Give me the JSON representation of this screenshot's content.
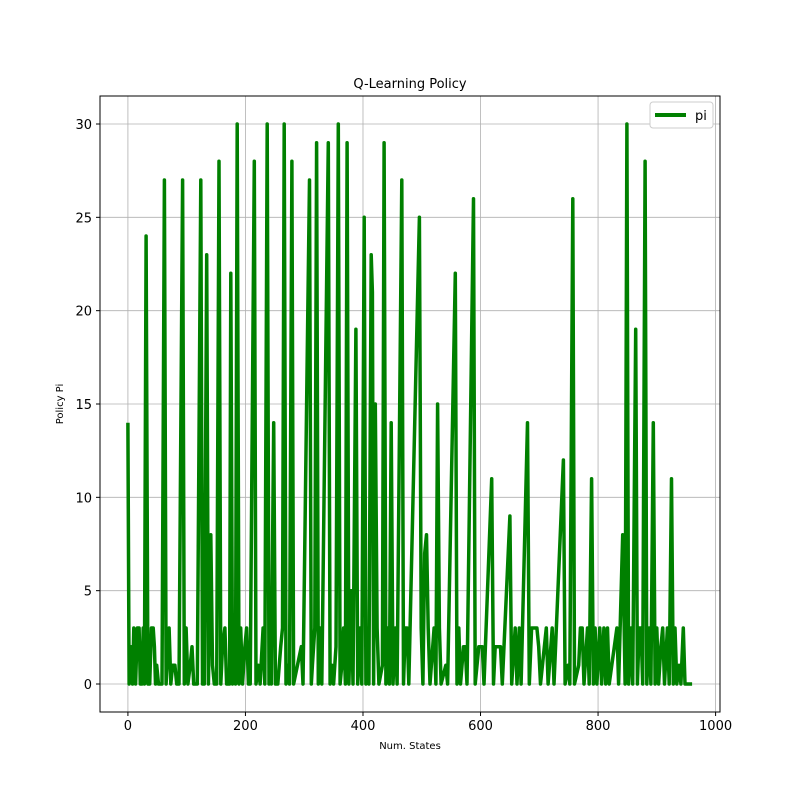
{
  "chart_data": {
    "type": "line",
    "title": "Q-Learning Policy",
    "xlabel": "Num. States",
    "ylabel": "Policy Pi",
    "xlim": [
      -47.5,
      1007.5
    ],
    "ylim": [
      -1.5,
      31.5
    ],
    "xticks": [
      0,
      200,
      400,
      600,
      800,
      1000
    ],
    "yticks": [
      0,
      5,
      10,
      15,
      20,
      25,
      30
    ],
    "xtick_labels": [
      "0",
      "200",
      "400",
      "600",
      "800",
      "1000"
    ],
    "ytick_labels": [
      "0",
      "5",
      "10",
      "15",
      "20",
      "25",
      "30"
    ],
    "grid": true,
    "legend": {
      "entries": [
        "pi"
      ],
      "position": "top-right"
    },
    "series": [
      {
        "name": "pi",
        "color": "#008000",
        "points": [
          [
            0,
            14
          ],
          [
            2,
            0
          ],
          [
            5,
            2
          ],
          [
            8,
            0
          ],
          [
            10,
            3
          ],
          [
            13,
            0
          ],
          [
            16,
            3
          ],
          [
            19,
            3
          ],
          [
            21,
            0
          ],
          [
            24,
            0
          ],
          [
            26,
            3
          ],
          [
            28,
            0
          ],
          [
            31,
            24
          ],
          [
            34,
            0
          ],
          [
            37,
            0
          ],
          [
            40,
            3
          ],
          [
            43,
            3
          ],
          [
            45,
            2
          ],
          [
            47,
            0
          ],
          [
            49,
            1
          ],
          [
            52,
            0
          ],
          [
            58,
            0
          ],
          [
            62,
            27
          ],
          [
            65,
            0
          ],
          [
            68,
            2
          ],
          [
            70,
            3
          ],
          [
            73,
            0
          ],
          [
            76,
            1
          ],
          [
            80,
            1
          ],
          [
            83,
            0
          ],
          [
            87,
            0
          ],
          [
            93,
            27
          ],
          [
            96,
            0
          ],
          [
            99,
            3
          ],
          [
            102,
            0
          ],
          [
            106,
            1
          ],
          [
            109,
            2
          ],
          [
            112,
            0
          ],
          [
            118,
            0
          ],
          [
            124,
            27
          ],
          [
            127,
            0
          ],
          [
            130,
            0
          ],
          [
            134,
            23
          ],
          [
            137,
            0
          ],
          [
            141,
            8
          ],
          [
            144,
            1
          ],
          [
            147,
            0
          ],
          [
            151,
            0
          ],
          [
            155,
            28
          ],
          [
            158,
            0
          ],
          [
            161,
            2
          ],
          [
            165,
            3
          ],
          [
            168,
            0
          ],
          [
            173,
            0
          ],
          [
            175,
            22
          ],
          [
            178,
            0
          ],
          [
            181,
            3
          ],
          [
            183,
            0
          ],
          [
            186,
            30
          ],
          [
            189,
            0
          ],
          [
            192,
            3
          ],
          [
            195,
            0
          ],
          [
            199,
            2
          ],
          [
            202,
            3
          ],
          [
            205,
            0
          ],
          [
            208,
            0
          ],
          [
            215,
            28
          ],
          [
            218,
            0
          ],
          [
            222,
            1
          ],
          [
            225,
            0
          ],
          [
            230,
            3
          ],
          [
            233,
            0
          ],
          [
            237,
            30
          ],
          [
            240,
            0
          ],
          [
            242,
            3
          ],
          [
            244,
            0
          ],
          [
            248,
            14
          ],
          [
            251,
            0
          ],
          [
            255,
            0
          ],
          [
            260,
            2
          ],
          [
            263,
            3
          ],
          [
            266,
            30
          ],
          [
            269,
            0
          ],
          [
            272,
            1
          ],
          [
            275,
            0
          ],
          [
            279,
            28
          ],
          [
            282,
            0
          ],
          [
            295,
            2
          ],
          [
            298,
            0
          ],
          [
            309,
            27
          ],
          [
            312,
            0
          ],
          [
            314,
            1
          ],
          [
            318,
            3
          ],
          [
            321,
            29
          ],
          [
            324,
            0
          ],
          [
            327,
            3
          ],
          [
            330,
            0
          ],
          [
            341,
            29
          ],
          [
            344,
            0
          ],
          [
            347,
            1
          ],
          [
            350,
            0
          ],
          [
            354,
            2
          ],
          [
            358,
            30
          ],
          [
            361,
            0
          ],
          [
            364,
            1
          ],
          [
            367,
            3
          ],
          [
            370,
            0
          ],
          [
            373,
            29
          ],
          [
            376,
            0
          ],
          [
            380,
            5
          ],
          [
            383,
            0
          ],
          [
            388,
            19
          ],
          [
            391,
            0
          ],
          [
            395,
            3
          ],
          [
            398,
            0
          ],
          [
            402,
            25
          ],
          [
            405,
            0
          ],
          [
            408,
            3
          ],
          [
            410,
            0
          ],
          [
            414,
            23
          ],
          [
            416,
            21
          ],
          [
            418,
            0
          ],
          [
            421,
            15
          ],
          [
            424,
            3
          ],
          [
            427,
            0
          ],
          [
            433,
            1
          ],
          [
            436,
            29
          ],
          [
            439,
            0
          ],
          [
            442,
            3
          ],
          [
            445,
            0
          ],
          [
            448,
            14
          ],
          [
            451,
            0
          ],
          [
            455,
            3
          ],
          [
            458,
            0
          ],
          [
            466,
            27
          ],
          [
            469,
            0
          ],
          [
            472,
            3
          ],
          [
            475,
            3
          ],
          [
            478,
            0
          ],
          [
            496,
            25
          ],
          [
            499,
            3
          ],
          [
            502,
            0
          ],
          [
            505,
            7
          ],
          [
            508,
            8
          ],
          [
            511,
            3
          ],
          [
            514,
            0
          ],
          [
            521,
            3
          ],
          [
            524,
            0
          ],
          [
            527,
            15
          ],
          [
            530,
            3
          ],
          [
            533,
            0
          ],
          [
            541,
            1
          ],
          [
            544,
            0
          ],
          [
            557,
            22
          ],
          [
            560,
            0
          ],
          [
            563,
            3
          ],
          [
            566,
            0
          ],
          [
            571,
            2
          ],
          [
            574,
            2
          ],
          [
            577,
            0
          ],
          [
            588,
            26
          ],
          [
            591,
            0
          ],
          [
            597,
            2
          ],
          [
            600,
            2
          ],
          [
            603,
            2
          ],
          [
            606,
            0
          ],
          [
            619,
            11
          ],
          [
            622,
            0
          ],
          [
            625,
            2
          ],
          [
            628,
            2
          ],
          [
            631,
            2
          ],
          [
            634,
            2
          ],
          [
            637,
            0
          ],
          [
            650,
            9
          ],
          [
            653,
            0
          ],
          [
            659,
            3
          ],
          [
            662,
            0
          ],
          [
            666,
            3
          ],
          [
            669,
            0
          ],
          [
            680,
            14
          ],
          [
            683,
            0
          ],
          [
            687,
            3
          ],
          [
            690,
            3
          ],
          [
            693,
            3
          ],
          [
            696,
            3
          ],
          [
            699,
            2
          ],
          [
            702,
            0
          ],
          [
            712,
            3
          ],
          [
            715,
            0
          ],
          [
            722,
            3
          ],
          [
            725,
            0
          ],
          [
            741,
            12
          ],
          [
            744,
            0
          ],
          [
            749,
            1
          ],
          [
            752,
            0
          ],
          [
            757,
            26
          ],
          [
            760,
            0
          ],
          [
            767,
            1
          ],
          [
            770,
            3
          ],
          [
            773,
            3
          ],
          [
            776,
            0
          ],
          [
            782,
            3
          ],
          [
            785,
            0
          ],
          [
            789,
            11
          ],
          [
            792,
            0
          ],
          [
            795,
            3
          ],
          [
            798,
            0
          ],
          [
            803,
            3
          ],
          [
            806,
            0
          ],
          [
            810,
            3
          ],
          [
            813,
            0
          ],
          [
            816,
            3
          ],
          [
            819,
            0
          ],
          [
            832,
            3
          ],
          [
            835,
            0
          ],
          [
            842,
            8
          ],
          [
            846,
            0
          ],
          [
            849,
            30
          ],
          [
            852,
            0
          ],
          [
            856,
            3
          ],
          [
            859,
            0
          ],
          [
            864,
            19
          ],
          [
            867,
            0
          ],
          [
            870,
            3
          ],
          [
            873,
            3
          ],
          [
            876,
            0
          ],
          [
            880,
            28
          ],
          [
            883,
            0
          ],
          [
            887,
            3
          ],
          [
            890,
            0
          ],
          [
            894,
            14
          ],
          [
            897,
            0
          ],
          [
            900,
            3
          ],
          [
            903,
            0
          ],
          [
            907,
            2
          ],
          [
            910,
            3
          ],
          [
            913,
            0
          ],
          [
            918,
            3
          ],
          [
            921,
            0
          ],
          [
            925,
            11
          ],
          [
            928,
            0
          ],
          [
            931,
            3
          ],
          [
            934,
            0
          ],
          [
            938,
            1
          ],
          [
            941,
            0
          ],
          [
            945,
            3
          ],
          [
            948,
            0
          ],
          [
            960,
            0
          ]
        ]
      }
    ]
  }
}
